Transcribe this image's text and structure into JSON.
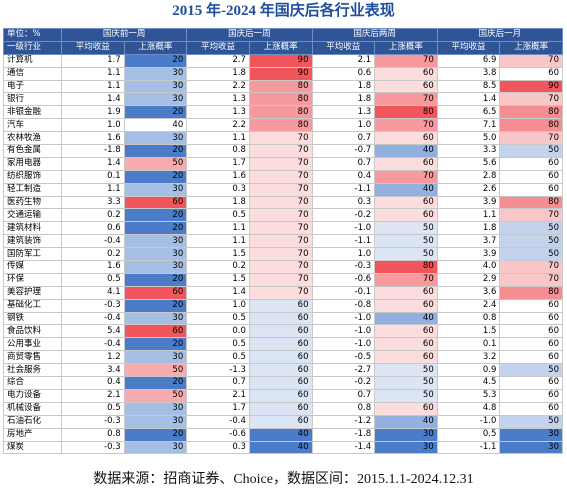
{
  "title": "2015 年-2024 年国庆后各行业表现",
  "table": {
    "header_top": [
      "单位：%",
      "国庆前一周",
      "国庆后一周",
      "国庆后两周",
      "国庆后一月"
    ],
    "header_sub": [
      "一级行业",
      "平均收益",
      "上涨概率",
      "平均收益",
      "上涨概率",
      "平均收益",
      "上涨概率",
      "平均收益",
      "上涨概率"
    ],
    "rows": [
      [
        "计算机",
        "1.7",
        "20",
        "2.7",
        "90",
        "2.1",
        "70",
        "6.9",
        "70"
      ],
      [
        "通信",
        "1.1",
        "30",
        "1.8",
        "90",
        "0.6",
        "60",
        "3.8",
        "60"
      ],
      [
        "电子",
        "1.1",
        "30",
        "2.2",
        "80",
        "1.8",
        "60",
        "8.5",
        "90"
      ],
      [
        "银行",
        "1.4",
        "30",
        "1.3",
        "80",
        "1.8",
        "70",
        "1.4",
        "70"
      ],
      [
        "非银金融",
        "1.9",
        "20",
        "1.3",
        "80",
        "1.3",
        "80",
        "6.5",
        "80"
      ],
      [
        "汽车",
        "1.0",
        "40",
        "2.2",
        "80",
        "1.0",
        "70",
        "7.1",
        "80"
      ],
      [
        "农林牧渔",
        "1.6",
        "30",
        "1.1",
        "70",
        "0.7",
        "60",
        "5.0",
        "70"
      ],
      [
        "有色金属",
        "-1.8",
        "20",
        "0.8",
        "70",
        "-0.7",
        "40",
        "3.3",
        "50"
      ],
      [
        "家用电器",
        "1.4",
        "50",
        "1.7",
        "70",
        "0.7",
        "60",
        "5.6",
        "60"
      ],
      [
        "纺织服饰",
        "0.1",
        "20",
        "1.6",
        "70",
        "0.4",
        "70",
        "2.8",
        "60"
      ],
      [
        "轻工制造",
        "1.1",
        "30",
        "0.3",
        "70",
        "-1.1",
        "40",
        "2.6",
        "60"
      ],
      [
        "医药生物",
        "3.3",
        "60",
        "1.8",
        "70",
        "0.3",
        "60",
        "3.9",
        "80"
      ],
      [
        "交通运输",
        "0.2",
        "20",
        "0.5",
        "70",
        "-0.2",
        "60",
        "1.1",
        "70"
      ],
      [
        "建筑材料",
        "0.6",
        "20",
        "1.1",
        "70",
        "-1.0",
        "50",
        "1.8",
        "50"
      ],
      [
        "建筑装饰",
        "-0.4",
        "30",
        "1.1",
        "70",
        "-1.1",
        "50",
        "3.7",
        "50"
      ],
      [
        "国防军工",
        "0.2",
        "30",
        "1.5",
        "70",
        "1.0",
        "50",
        "3.9",
        "50"
      ],
      [
        "传媒",
        "1.6",
        "30",
        "0.2",
        "70",
        "-0.3",
        "80",
        "4.0",
        "70"
      ],
      [
        "环保",
        "0.5",
        "20",
        "1.5",
        "70",
        "-0.6",
        "70",
        "2.9",
        "70"
      ],
      [
        "美容护理",
        "4.1",
        "60",
        "1.4",
        "70",
        "-0.1",
        "60",
        "3.6",
        "80"
      ],
      [
        "基础化工",
        "-0.3",
        "20",
        "1.0",
        "60",
        "-0.8",
        "60",
        "2.4",
        "60"
      ],
      [
        "钢铁",
        "-0.4",
        "30",
        "0.5",
        "60",
        "-1.0",
        "40",
        "0.8",
        "60"
      ],
      [
        "食品饮料",
        "5.4",
        "60",
        "0.0",
        "60",
        "-1.0",
        "60",
        "1.5",
        "60"
      ],
      [
        "公用事业",
        "-0.4",
        "20",
        "0.5",
        "60",
        "-1.0",
        "60",
        "0.1",
        "60"
      ],
      [
        "商贸零售",
        "1.2",
        "30",
        "0.5",
        "60",
        "-0.5",
        "60",
        "3.2",
        "60"
      ],
      [
        "社会服务",
        "3.4",
        "50",
        "-1.3",
        "60",
        "-2.7",
        "50",
        "0.9",
        "50"
      ],
      [
        "综合",
        "0.4",
        "20",
        "0.7",
        "60",
        "-0.2",
        "50",
        "4.5",
        "60"
      ],
      [
        "电力设备",
        "2.1",
        "50",
        "2.1",
        "60",
        "0.7",
        "50",
        "5.3",
        "60"
      ],
      [
        "机械设备",
        "0.5",
        "30",
        "1.7",
        "60",
        "0.8",
        "60",
        "4.8",
        "60"
      ],
      [
        "石油石化",
        "-0.3",
        "30",
        "-0.4",
        "60",
        "-1.2",
        "40",
        "-1.0",
        "50"
      ],
      [
        "房地产",
        "0.8",
        "20",
        "-0.6",
        "40",
        "-1.8",
        "30",
        "0.5",
        "30"
      ],
      [
        "煤炭",
        "-0.3",
        "30",
        "0.3",
        "40",
        "-1.4",
        "30",
        "-1.1",
        "30"
      ]
    ],
    "color_scale": {
      "low": "#4a7cc9",
      "mid": "#ffffff",
      "high": "#f0565c"
    }
  },
  "footer": "数据来源：招商证券、Choice，数据区间：2015.1.1-2024.12.31"
}
